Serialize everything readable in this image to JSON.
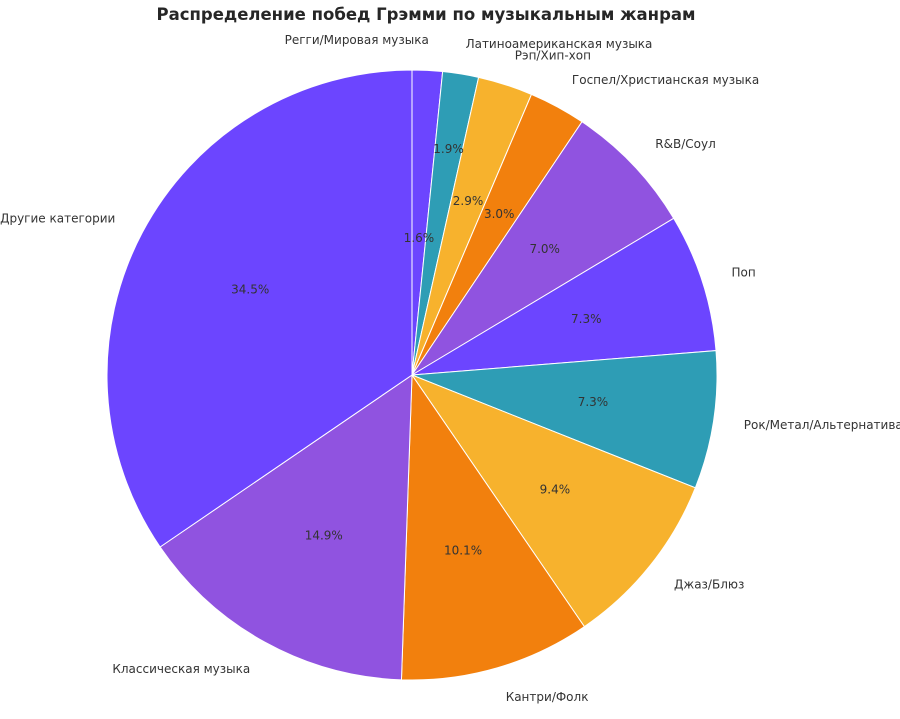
{
  "chart_data": {
    "type": "pie",
    "title": "Распределение побед Грэмми по музыкальным жанрам",
    "start_angle_deg": 90,
    "direction": "clockwise",
    "slices": [
      {
        "label": "Регги/Мировая музыка",
        "value": 1.6,
        "pct_label": "1.6%",
        "color": "#6C45FF"
      },
      {
        "label": "Латиноамериканская музыка",
        "value": 1.9,
        "pct_label": "1.9%",
        "color": "#2E9DB5"
      },
      {
        "label": "Рэп/Хип-хоп",
        "value": 2.9,
        "pct_label": "2.9%",
        "color": "#F7B22D"
      },
      {
        "label": "Госпел/Христианская музыка",
        "value": 3.0,
        "pct_label": "3.0%",
        "color": "#F2800D"
      },
      {
        "label": "R&B/Соул",
        "value": 7.0,
        "pct_label": "7.0%",
        "color": "#9053E0"
      },
      {
        "label": "Поп",
        "value": 7.3,
        "pct_label": "7.3%",
        "color": "#6C45FF"
      },
      {
        "label": "Рок/Метал/Альтернатива",
        "value": 7.3,
        "pct_label": "7.3%",
        "color": "#2E9DB5"
      },
      {
        "label": "Джаз/Блюз",
        "value": 9.4,
        "pct_label": "9.4%",
        "color": "#F7B22D"
      },
      {
        "label": "Кантри/Фолк",
        "value": 10.1,
        "pct_label": "10.1%",
        "color": "#F2800D"
      },
      {
        "label": "Классическая музыка",
        "value": 14.9,
        "pct_label": "14.9%",
        "color": "#9053E0"
      },
      {
        "label": "Другие категории",
        "value": 34.5,
        "pct_label": "34.5%",
        "color": "#6C45FF"
      }
    ]
  }
}
